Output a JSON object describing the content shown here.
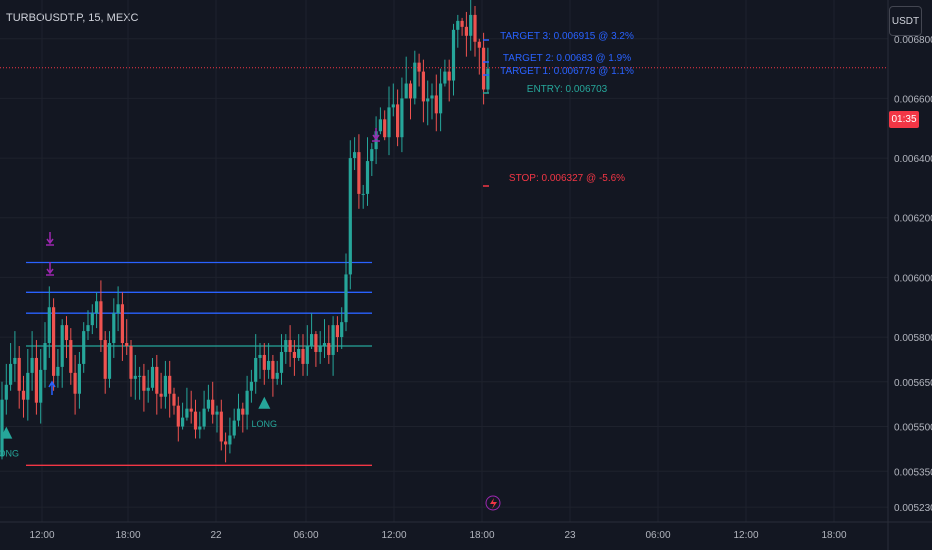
{
  "header": {
    "symbol": "TURBOUSDT.P, 15, MEXC",
    "currency": "USDT"
  },
  "current": {
    "badge_text": "01:35",
    "price": 0.006703
  },
  "colors": {
    "up": "#26a69a",
    "down": "#ef5350",
    "background": "#131722",
    "grid": "#1e222d",
    "target": "#2962ff",
    "entry": "#26a69a",
    "stop": "#f23645",
    "exit_marker": "#9c27b0"
  },
  "chart_data": {
    "type": "candlestick",
    "y_axis": {
      "ticks": [
        "0.006800",
        "0.006600",
        "0.006400",
        "0.006200",
        "0.006000",
        "0.005800",
        "0.005650",
        "0.005500",
        "0.005350",
        "0.005230"
      ],
      "ylim": [
        0.00518,
        0.00693
      ]
    },
    "x_axis": {
      "ticks": [
        "12:00",
        "18:00",
        "22",
        "06:00",
        "12:00",
        "18:00",
        "23",
        "06:00",
        "12:00",
        "18:00"
      ]
    },
    "levels": {
      "target3": {
        "label": "TARGET 3: 0.006915 @ 3.2%",
        "value": 0.006915
      },
      "target2": {
        "label": "TARGET 2: 0.00683 @ 1.9%",
        "value": 0.00683
      },
      "target1": {
        "label": "TARGET 1: 0.006778 @ 1.1%",
        "value": 0.006778
      },
      "entry": {
        "label": "ENTRY: 0.006703",
        "value": 0.006703
      },
      "stop": {
        "label": "STOP: 0.006327 @ -5.6%",
        "value": 0.006327
      }
    },
    "signals": [
      {
        "type": "LONG",
        "label": "LONG",
        "candle": 1
      },
      {
        "type": "LONG",
        "label": "LONG",
        "candle": 61
      }
    ],
    "old_levels": [
      0.00605,
      0.00595,
      0.00588,
      0.00577,
      0.00537
    ],
    "candles": [
      [
        0.0054,
        0.00559,
        0.00565,
        0.00539
      ],
      [
        0.00559,
        0.00564,
        0.00571,
        0.00554
      ],
      [
        0.00564,
        0.00571,
        0.00578,
        0.00562
      ],
      [
        0.00571,
        0.00573,
        0.00582,
        0.00565
      ],
      [
        0.00573,
        0.00562,
        0.00577,
        0.00556
      ],
      [
        0.00562,
        0.00559,
        0.00567,
        0.00553
      ],
      [
        0.00559,
        0.00568,
        0.00576,
        0.00552
      ],
      [
        0.00568,
        0.00573,
        0.00582,
        0.00562
      ],
      [
        0.00573,
        0.00558,
        0.00579,
        0.00554
      ],
      [
        0.00558,
        0.00569,
        0.00576,
        0.00551
      ],
      [
        0.00569,
        0.00578,
        0.00585,
        0.00563
      ],
      [
        0.00578,
        0.0059,
        0.00597,
        0.00573
      ],
      [
        0.0059,
        0.00567,
        0.00593,
        0.00562
      ],
      [
        0.00567,
        0.0057,
        0.00576,
        0.00563
      ],
      [
        0.0057,
        0.00584,
        0.00586,
        0.00563
      ],
      [
        0.00584,
        0.00579,
        0.00587,
        0.00573
      ],
      [
        0.00579,
        0.00568,
        0.00583,
        0.00564
      ],
      [
        0.00568,
        0.00561,
        0.00574,
        0.00554
      ],
      [
        0.00561,
        0.00571,
        0.00575,
        0.00556
      ],
      [
        0.00571,
        0.00582,
        0.00585,
        0.00568
      ],
      [
        0.00582,
        0.00584,
        0.00589,
        0.00579
      ],
      [
        0.00584,
        0.00588,
        0.00591,
        0.00581
      ],
      [
        0.00588,
        0.00592,
        0.00595,
        0.00583
      ],
      [
        0.00592,
        0.00579,
        0.00599,
        0.00575
      ],
      [
        0.00579,
        0.00566,
        0.00582,
        0.00561
      ],
      [
        0.00566,
        0.00578,
        0.00582,
        0.00563
      ],
      [
        0.00578,
        0.00588,
        0.00593,
        0.00573
      ],
      [
        0.00588,
        0.00591,
        0.00597,
        0.00582
      ],
      [
        0.00591,
        0.00578,
        0.00595,
        0.00572
      ],
      [
        0.00578,
        0.00577,
        0.00586,
        0.00574
      ],
      [
        0.00577,
        0.00566,
        0.00579,
        0.0056
      ],
      [
        0.00566,
        0.00567,
        0.00574,
        0.00559
      ],
      [
        0.00567,
        0.00567,
        0.0057,
        0.00559
      ],
      [
        0.00567,
        0.00562,
        0.00571,
        0.00555
      ],
      [
        0.00562,
        0.00563,
        0.00569,
        0.00558
      ],
      [
        0.00563,
        0.0057,
        0.00573,
        0.00562
      ],
      [
        0.0057,
        0.00561,
        0.00574,
        0.00554
      ],
      [
        0.00561,
        0.0056,
        0.00568,
        0.00556
      ],
      [
        0.0056,
        0.00567,
        0.00572,
        0.00556
      ],
      [
        0.00567,
        0.00561,
        0.00572,
        0.00553
      ],
      [
        0.00561,
        0.00557,
        0.00563,
        0.00554
      ],
      [
        0.00557,
        0.0055,
        0.0056,
        0.00545
      ],
      [
        0.0055,
        0.00553,
        0.00558,
        0.00549
      ],
      [
        0.00553,
        0.00556,
        0.00563,
        0.00552
      ],
      [
        0.00556,
        0.00555,
        0.00562,
        0.00551
      ],
      [
        0.00555,
        0.00549,
        0.00559,
        0.00546
      ],
      [
        0.00549,
        0.0055,
        0.00555,
        0.00546
      ],
      [
        0.0055,
        0.00556,
        0.00562,
        0.00549
      ],
      [
        0.00556,
        0.00559,
        0.00564,
        0.00555
      ],
      [
        0.00559,
        0.00554,
        0.00565,
        0.00551
      ],
      [
        0.00554,
        0.00555,
        0.00557,
        0.00548
      ],
      [
        0.00555,
        0.00545,
        0.00559,
        0.00542
      ],
      [
        0.00545,
        0.00544,
        0.00548,
        0.00538
      ],
      [
        0.00544,
        0.00547,
        0.00553,
        0.00541
      ],
      [
        0.00547,
        0.00552,
        0.00556,
        0.00546
      ],
      [
        0.00552,
        0.00556,
        0.00561,
        0.0055
      ],
      [
        0.00556,
        0.00554,
        0.00558,
        0.00548
      ],
      [
        0.00554,
        0.00562,
        0.00567,
        0.00549
      ],
      [
        0.00562,
        0.00565,
        0.00569,
        0.00558
      ],
      [
        0.00565,
        0.00573,
        0.00581,
        0.00561
      ],
      [
        0.00573,
        0.00574,
        0.00578,
        0.00566
      ],
      [
        0.00574,
        0.00569,
        0.00578,
        0.00564
      ],
      [
        0.00569,
        0.00572,
        0.00578,
        0.00566
      ],
      [
        0.00572,
        0.00566,
        0.00574,
        0.0056
      ],
      [
        0.00566,
        0.00568,
        0.00572,
        0.00564
      ],
      [
        0.00568,
        0.00575,
        0.00581,
        0.00564
      ],
      [
        0.00575,
        0.00579,
        0.00581,
        0.00571
      ],
      [
        0.00579,
        0.00575,
        0.00584,
        0.0057
      ],
      [
        0.00575,
        0.00573,
        0.00579,
        0.00567
      ],
      [
        0.00573,
        0.00576,
        0.00581,
        0.00572
      ],
      [
        0.00576,
        0.00571,
        0.00581,
        0.00567
      ],
      [
        0.00571,
        0.00577,
        0.00584,
        0.00567
      ],
      [
        0.00577,
        0.00581,
        0.00588,
        0.00576
      ],
      [
        0.00581,
        0.00575,
        0.00582,
        0.0057
      ],
      [
        0.00575,
        0.00577,
        0.00582,
        0.00571
      ],
      [
        0.00577,
        0.00578,
        0.00586,
        0.00573
      ],
      [
        0.00578,
        0.00574,
        0.00584,
        0.00571
      ],
      [
        0.00574,
        0.00584,
        0.00587,
        0.00567
      ],
      [
        0.00584,
        0.0058,
        0.00587,
        0.00575
      ],
      [
        0.0058,
        0.00585,
        0.0059,
        0.00576
      ],
      [
        0.00585,
        0.00601,
        0.00608,
        0.00582
      ],
      [
        0.00601,
        0.0064,
        0.00646,
        0.00596
      ],
      [
        0.0064,
        0.00642,
        0.00647,
        0.00636
      ],
      [
        0.00642,
        0.00628,
        0.00648,
        0.00623
      ],
      [
        0.00628,
        0.00628,
        0.00631,
        0.00623
      ],
      [
        0.00628,
        0.00639,
        0.00647,
        0.00624
      ],
      [
        0.00639,
        0.00643,
        0.00645,
        0.00634
      ],
      [
        0.00643,
        0.00649,
        0.00654,
        0.00638
      ],
      [
        0.00649,
        0.00653,
        0.00657,
        0.00648
      ],
      [
        0.00653,
        0.00647,
        0.00656,
        0.00646
      ],
      [
        0.00647,
        0.00657,
        0.00664,
        0.00641
      ],
      [
        0.00657,
        0.00658,
        0.00665,
        0.00654
      ],
      [
        0.00658,
        0.00647,
        0.00663,
        0.00644
      ],
      [
        0.00647,
        0.0066,
        0.00667,
        0.00642
      ],
      [
        0.0066,
        0.00665,
        0.00674,
        0.0066
      ],
      [
        0.00665,
        0.0066,
        0.00666,
        0.00653
      ],
      [
        0.0066,
        0.00672,
        0.00676,
        0.00658
      ],
      [
        0.00672,
        0.00669,
        0.00675,
        0.00664
      ],
      [
        0.00669,
        0.00659,
        0.00673,
        0.00652
      ],
      [
        0.00659,
        0.0066,
        0.00666,
        0.00651
      ],
      [
        0.0066,
        0.00661,
        0.00665,
        0.00653
      ],
      [
        0.00661,
        0.00655,
        0.00668,
        0.00649
      ],
      [
        0.00655,
        0.00665,
        0.0067,
        0.00649
      ],
      [
        0.00665,
        0.00669,
        0.00673,
        0.00664
      ],
      [
        0.00669,
        0.00666,
        0.00673,
        0.00659
      ],
      [
        0.00666,
        0.00683,
        0.00685,
        0.00661
      ],
      [
        0.00683,
        0.00686,
        0.00688,
        0.00677
      ],
      [
        0.00686,
        0.00684,
        0.00687,
        0.00681
      ],
      [
        0.00684,
        0.00681,
        0.00689,
        0.00674
      ],
      [
        0.00681,
        0.00688,
        0.00695,
        0.00676
      ],
      [
        0.00688,
        0.00679,
        0.00691,
        0.00674
      ],
      [
        0.00679,
        0.00677,
        0.0068,
        0.00668
      ],
      [
        0.00677,
        0.00663,
        0.00682,
        0.00658
      ],
      [
        0.00663,
        0.0067,
        0.00677,
        0.00662
      ]
    ]
  }
}
